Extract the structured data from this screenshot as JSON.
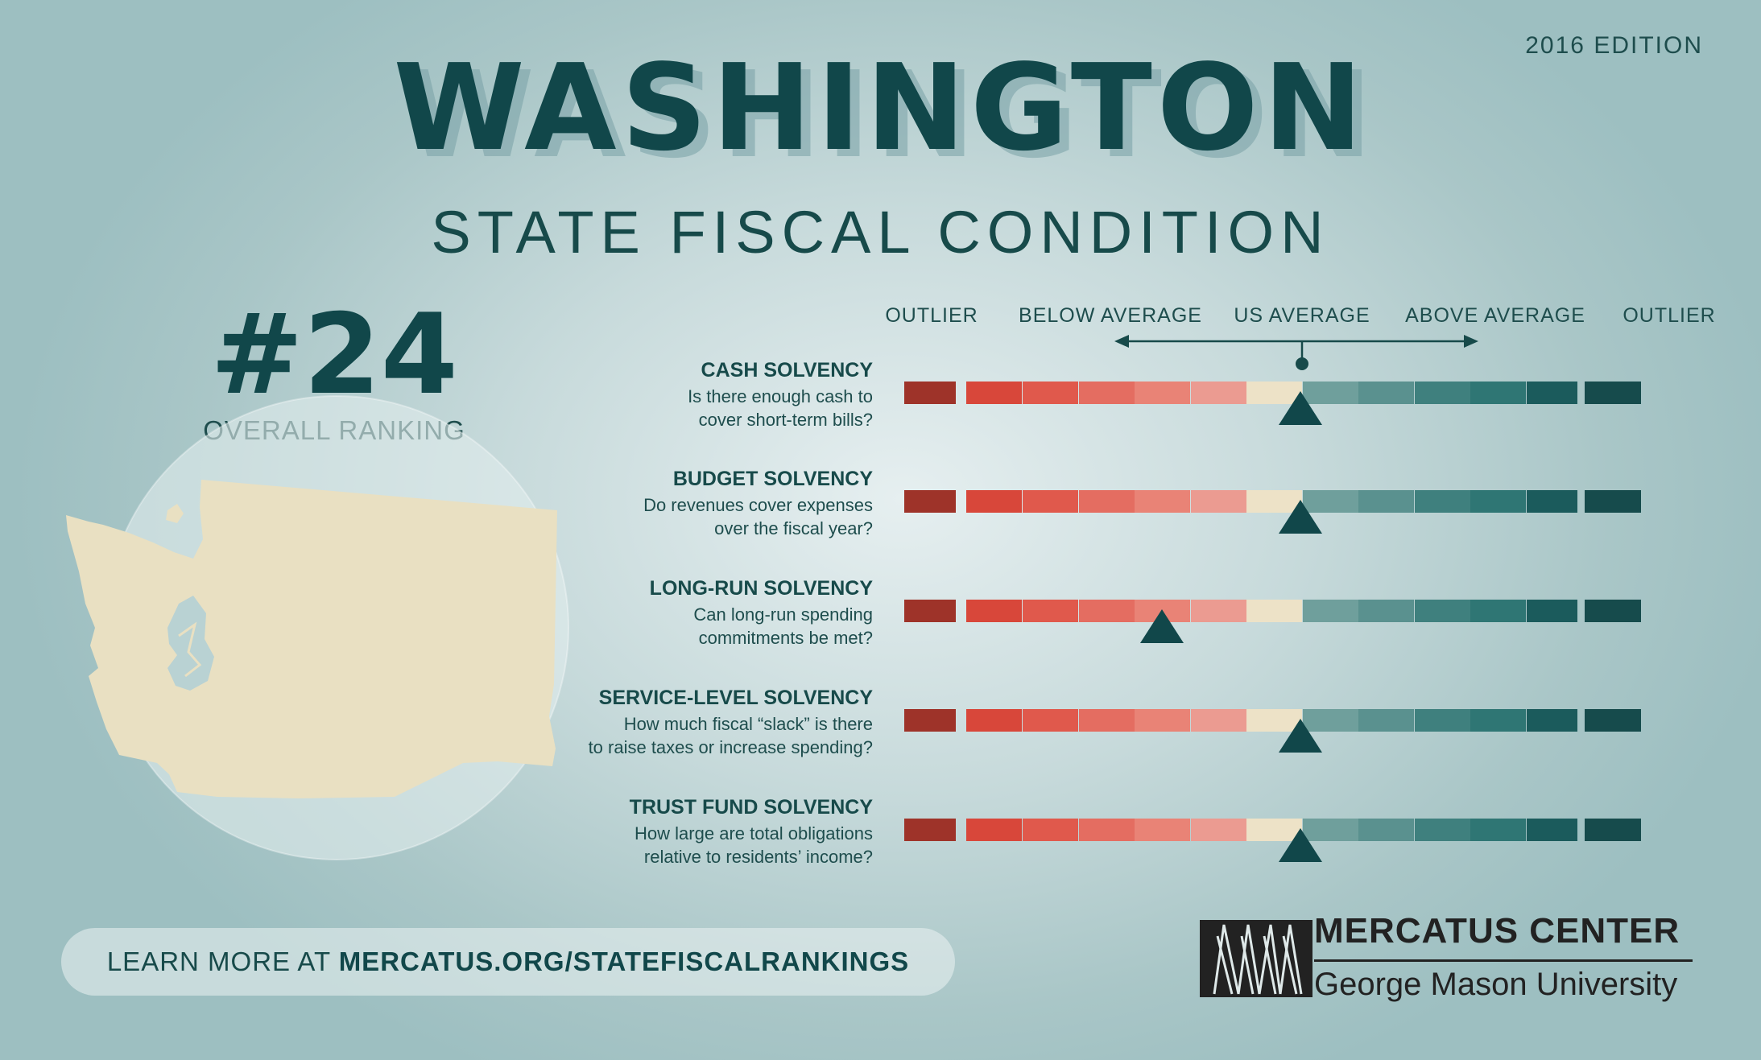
{
  "edition": "2016 EDITION",
  "title": "WASHINGTON",
  "subtitle": "STATE FISCAL CONDITION",
  "ranking": {
    "number": "#24",
    "label": "OVERALL RANKING"
  },
  "scale_labels": [
    "OUTLIER",
    "BELOW AVERAGE",
    "US AVERAGE",
    "ABOVE AVERAGE",
    "OUTLIER"
  ],
  "scale_colors": [
    "#9e3329",
    "#d8473a",
    "#e0594c",
    "#e46d61",
    "#e98376",
    "#eb9b91",
    "#ede2c7",
    "#6f9f9c",
    "#5a918f",
    "#3f807e",
    "#2f7674",
    "#1b5b5c",
    "#164b4c"
  ],
  "metrics": [
    {
      "name": "CASH SOLVENCY",
      "question": [
        "Is there enough cash to",
        "cover short-term bills?"
      ],
      "position": 0.5
    },
    {
      "name": "BUDGET SOLVENCY",
      "question": [
        "Do revenues cover expenses",
        "over the fiscal year?"
      ],
      "position": 0.5
    },
    {
      "name": "LONG-RUN SOLVENCY",
      "question": [
        "Can long-run spending",
        "commitments be met?"
      ],
      "position": 0.325
    },
    {
      "name": "SERVICE-LEVEL SOLVENCY",
      "question": [
        "How much fiscal “slack” is there",
        "to raise taxes or increase spending?"
      ],
      "position": 0.5
    },
    {
      "name": "TRUST FUND SOLVENCY",
      "question": [
        "How large are total obligations",
        "relative to residents’ income?"
      ],
      "position": 0.5
    }
  ],
  "footer": {
    "learn_prefix": "LEARN MORE AT ",
    "learn_link": "MERCATUS.ORG/STATEFISCALRANKINGS",
    "org_name": "MERCATUS CENTER",
    "org_university": "George Mason University"
  }
}
